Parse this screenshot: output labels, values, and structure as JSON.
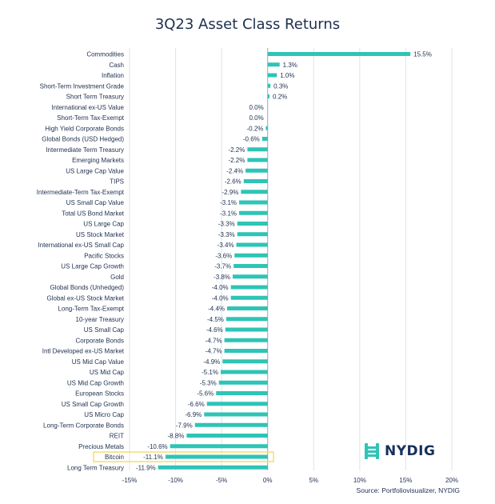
{
  "chart_data": {
    "type": "bar",
    "orientation": "horizontal",
    "title": "3Q23 Asset Class Returns",
    "categories": [
      "Commodities",
      "Cash",
      "Inflation",
      "Short-Term Investment Grade",
      "Short Term Treasury",
      "International ex-US Value",
      "Short-Term Tax-Exempt",
      "High Yield Corporate Bonds",
      "Global Bonds (USD Hedged)",
      "Intermediate Term Treasury",
      "Emerging Markets",
      "US Large Cap Value",
      "TIPS",
      "Intermediate-Term Tax-Exempt",
      "US Small Cap Value",
      "Total US Bond Market",
      "US Large Cap",
      "US Stock Market",
      "International ex-US Small Cap",
      "Pacific Stocks",
      "US Large Cap Growth",
      "Gold",
      "Global Bonds (Unhedged)",
      "Global ex-US Stock Market",
      "Long-Term Tax-Exempt",
      "10-year Treasury",
      "US Small Cap",
      "Corporate Bonds",
      "Intl Developed ex-US Market",
      "US Mid Cap Value",
      "US Mid Cap",
      "US Mid Cap Growth",
      "European Stocks",
      "US Small Cap Growth",
      "US Micro Cap",
      "Long-Term Corporate Bonds",
      "REIT",
      "Precious Metals",
      "Bitcoin",
      "Long Term Treasury"
    ],
    "values": [
      15.5,
      1.3,
      1.0,
      0.3,
      0.2,
      0.0,
      0.0,
      -0.2,
      -0.6,
      -2.2,
      -2.2,
      -2.4,
      -2.6,
      -2.9,
      -3.1,
      -3.1,
      -3.3,
      -3.3,
      -3.4,
      -3.6,
      -3.7,
      -3.8,
      -4.0,
      -4.0,
      -4.4,
      -4.5,
      -4.6,
      -4.7,
      -4.7,
      -4.9,
      -5.1,
      -5.3,
      -5.6,
      -6.6,
      -6.9,
      -7.9,
      -8.8,
      -10.6,
      -11.1,
      -11.9
    ],
    "value_labels": [
      "15.5%",
      "1.3%",
      "1.0%",
      "0.3%",
      "0.2%",
      "0.0%",
      "0.0%",
      "-0.2%",
      "-0.6%",
      "-2.2%",
      "-2.2%",
      "-2.4%",
      "-2.6%",
      "-2.9%",
      "-3.1%",
      "-3.1%",
      "-3.3%",
      "-3.3%",
      "-3.4%",
      "-3.6%",
      "-3.7%",
      "-3.8%",
      "-4.0%",
      "-4.0%",
      "-4.4%",
      "-4.5%",
      "-4.6%",
      "-4.7%",
      "-4.7%",
      "-4.9%",
      "-5.1%",
      "-5.3%",
      "-5.6%",
      "-6.6%",
      "-6.9%",
      "-7.9%",
      "-8.8%",
      "-10.6%",
      "-11.1%",
      "-11.9%"
    ],
    "xlim": [
      -15,
      20
    ],
    "xticks": [
      -15,
      -10,
      -5,
      0,
      5,
      10,
      15,
      20
    ],
    "xtick_labels": [
      "-15%",
      "-10%",
      "-5%",
      "0%",
      "5%",
      "10%",
      "15%",
      "20%"
    ],
    "grid": "vertical",
    "highlight": "Bitcoin",
    "bar_color": "#2ec4b6",
    "highlight_color": "#f3dd6d"
  },
  "source": "Source: Portfoliovisualizer, NYDIG",
  "logo": {
    "text": "NYDIG",
    "icon": "nydig-logo-icon"
  }
}
